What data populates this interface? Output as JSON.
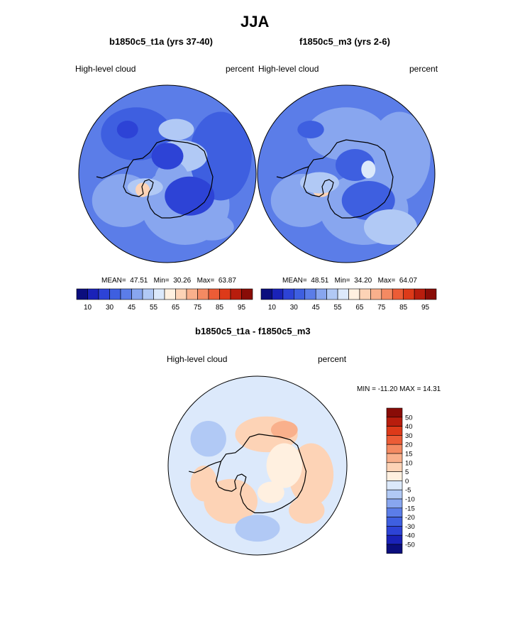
{
  "page": {
    "title": "JJA"
  },
  "chart_data": [
    {
      "type": "heatmap",
      "subtitle": "b1850c5_t1a (yrs 37-40)",
      "left_label": "High-level cloud",
      "right_label": "percent",
      "stats": {
        "mean_label": "MEAN=",
        "mean": "47.51",
        "min_label": "Min=",
        "min": "30.26",
        "max_label": "Max=",
        "max": "63.87"
      },
      "colorbar": {
        "tick_labels": [
          "10",
          "30",
          "45",
          "55",
          "65",
          "75",
          "85",
          "95"
        ],
        "colors": [
          "#0b0e7e",
          "#1a22b8",
          "#2d43d6",
          "#3e5fe0",
          "#5b7de8",
          "#88a6ef",
          "#b1c9f5",
          "#dce9fb",
          "#fff0e0",
          "#fdd3b6",
          "#f9b08c",
          "#f48a62",
          "#ec5c36",
          "#dd3a19",
          "#b81d0d",
          "#890c07"
        ]
      },
      "blobs": [
        {
          "k": 1,
          "c": "#3b5fdf"
        },
        {
          "k": 2,
          "c": "#2d43d6"
        },
        {
          "k": 3,
          "c": "#5b7de8"
        },
        {
          "k": 4,
          "c": "#b1c9f5"
        },
        {
          "k": 5,
          "c": "#fdd3b6"
        }
      ]
    },
    {
      "type": "heatmap",
      "subtitle": "f1850c5_m3 (yrs 2-6)",
      "left_label": "High-level cloud",
      "right_label": "percent",
      "stats": {
        "mean_label": "MEAN=",
        "mean": "48.51",
        "min_label": "Min=",
        "min": "34.20",
        "max_label": "Max=",
        "max": "64.07"
      },
      "colorbar": {
        "tick_labels": [
          "10",
          "30",
          "45",
          "55",
          "65",
          "75",
          "85",
          "95"
        ],
        "colors": [
          "#0b0e7e",
          "#1a22b8",
          "#2d43d6",
          "#3e5fe0",
          "#5b7de8",
          "#88a6ef",
          "#b1c9f5",
          "#dce9fb",
          "#fff0e0",
          "#fdd3b6",
          "#f9b08c",
          "#f48a62",
          "#ec5c36",
          "#dd3a19",
          "#b81d0d",
          "#890c07"
        ]
      }
    },
    {
      "type": "heatmap",
      "subtitle": "b1850c5_t1a - f1850c5_m3",
      "left_label": "High-level cloud",
      "right_label": "percent",
      "minmax": "MIN = -11.20 MAX =  14.31",
      "colorbar": {
        "tick_labels": [
          "50",
          "40",
          "30",
          "20",
          "15",
          "10",
          "5",
          "0",
          "-5",
          "-10",
          "-15",
          "-20",
          "-30",
          "-40",
          "-50"
        ],
        "colors": [
          "#890c07",
          "#b81d0d",
          "#dd3a19",
          "#ec5c36",
          "#f48a62",
          "#f9b08c",
          "#fdd3b6",
          "#fff0e0",
          "#dce9fb",
          "#b1c9f5",
          "#88a6ef",
          "#5b7de8",
          "#3e5fe0",
          "#2d43d6",
          "#1a22b8",
          "#0b0e7e"
        ]
      }
    }
  ]
}
